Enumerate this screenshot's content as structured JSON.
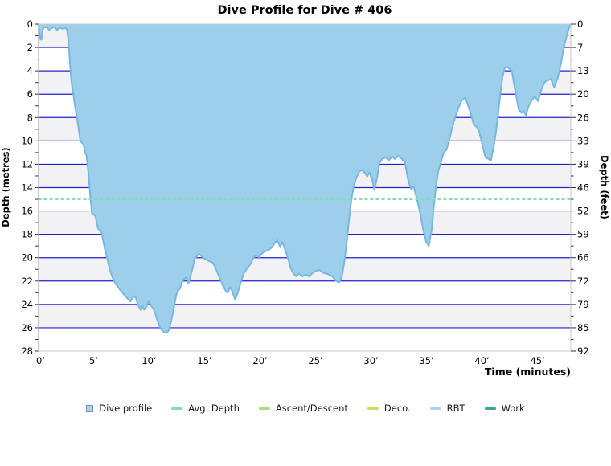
{
  "title": "Dive Profile for Dive # 406",
  "axes": {
    "left": {
      "label": "Depth (metres)",
      "ticks": [
        0,
        2,
        4,
        6,
        8,
        10,
        12,
        14,
        16,
        18,
        20,
        22,
        24,
        26,
        28
      ]
    },
    "right": {
      "label": "Depth (feet)",
      "ticks": [
        0,
        7,
        13,
        20,
        26,
        33,
        39,
        46,
        52,
        59,
        66,
        72,
        79,
        85,
        92
      ]
    },
    "bottom": {
      "label": "Time (minutes)",
      "tick_labels": [
        "0’",
        "5’",
        "10’",
        "15’",
        "20’",
        "25’",
        "30’",
        "35’",
        "40’",
        "45’"
      ],
      "tick_minutes": [
        0,
        5,
        10,
        15,
        20,
        25,
        30,
        35,
        40,
        45
      ]
    },
    "depth_max_m": 28,
    "time_max_min": 48
  },
  "colors": {
    "area_fill": "#9ccfe9",
    "area_stroke": "#7ab6e0",
    "grid": "#2222cc",
    "band_gray": "#f2f2f4",
    "band_white": "#ffffff",
    "plot_border": "#c8c8c8",
    "tick": "#333333",
    "avg_depth_line": "#7fdfad"
  },
  "legend": {
    "items": [
      {
        "label": "Dive profile",
        "color": "#a9d4ec",
        "border": "#6d9cb8",
        "type": "square"
      },
      {
        "label": "Avg. Depth",
        "color": "#7fdfad",
        "type": "line"
      },
      {
        "label": "Ascent/Descent",
        "color": "#a2dd7e",
        "type": "line"
      },
      {
        "label": "Deco.",
        "color": "#d2d966",
        "type": "line"
      },
      {
        "label": "RBT",
        "color": "#a8d7ee",
        "type": "line"
      },
      {
        "label": "Work",
        "color": "#3aa88d",
        "type": "line"
      }
    ]
  },
  "chart_data": {
    "type": "area",
    "title": "Dive Profile for Dive # 406",
    "xlabel": "Time (minutes)",
    "ylabel_left": "Depth (metres)",
    "ylabel_right": "Depth (feet)",
    "x_range_minutes": [
      0,
      48
    ],
    "y_range_metres": [
      0,
      28
    ],
    "y_inverted": true,
    "grid": "horizontal-blue-every-2m",
    "legend_position": "bottom",
    "avg_depth_m": 15,
    "max_depth_m": 26.5,
    "series": [
      {
        "name": "Dive profile",
        "points": [
          [
            0,
            0
          ],
          [
            0.1,
            0.5
          ],
          [
            0.2,
            1.3
          ],
          [
            0.3,
            1.35
          ],
          [
            0.4,
            0.5
          ],
          [
            0.55,
            0.25
          ],
          [
            0.8,
            0.3
          ],
          [
            1.0,
            0.5
          ],
          [
            1.2,
            0.35
          ],
          [
            1.45,
            0.25
          ],
          [
            1.7,
            0.5
          ],
          [
            1.95,
            0.3
          ],
          [
            2.2,
            0.4
          ],
          [
            2.45,
            0.3
          ],
          [
            2.6,
            0.5
          ],
          [
            2.7,
            1.2
          ],
          [
            2.8,
            2.4
          ],
          [
            2.9,
            3.8
          ],
          [
            3.0,
            4.9
          ],
          [
            3.15,
            5.9
          ],
          [
            3.3,
            6.9
          ],
          [
            3.5,
            8.0
          ],
          [
            3.65,
            9.0
          ],
          [
            3.8,
            10.0
          ],
          [
            3.95,
            10.15
          ],
          [
            4.1,
            10.35
          ],
          [
            4.2,
            11.0
          ],
          [
            4.35,
            11.2
          ],
          [
            4.45,
            12.0
          ],
          [
            4.55,
            13.0
          ],
          [
            4.65,
            14.2
          ],
          [
            4.75,
            15.3
          ],
          [
            4.85,
            16.2
          ],
          [
            5.0,
            16.3
          ],
          [
            5.15,
            16.45
          ],
          [
            5.3,
            17.1
          ],
          [
            5.4,
            17.5
          ],
          [
            5.55,
            17.65
          ],
          [
            5.7,
            17.8
          ],
          [
            5.85,
            18.5
          ],
          [
            6.0,
            19.2
          ],
          [
            6.2,
            20.0
          ],
          [
            6.45,
            21.0
          ],
          [
            6.7,
            21.7
          ],
          [
            6.95,
            22.2
          ],
          [
            7.25,
            22.6
          ],
          [
            7.6,
            23.0
          ],
          [
            8.0,
            23.45
          ],
          [
            8.3,
            23.75
          ],
          [
            8.55,
            23.4
          ],
          [
            8.75,
            23.3
          ],
          [
            8.95,
            23.9
          ],
          [
            9.1,
            24.25
          ],
          [
            9.25,
            24.5
          ],
          [
            9.4,
            24.1
          ],
          [
            9.55,
            24.45
          ],
          [
            9.75,
            24.2
          ],
          [
            9.95,
            23.75
          ],
          [
            10.15,
            24.05
          ],
          [
            10.45,
            24.5
          ],
          [
            10.75,
            25.4
          ],
          [
            11.05,
            26.1
          ],
          [
            11.3,
            26.35
          ],
          [
            11.55,
            26.45
          ],
          [
            11.75,
            26.25
          ],
          [
            11.95,
            25.6
          ],
          [
            12.15,
            24.7
          ],
          [
            12.3,
            23.9
          ],
          [
            12.45,
            23.2
          ],
          [
            12.6,
            22.85
          ],
          [
            12.8,
            22.6
          ],
          [
            13.0,
            22.0
          ],
          [
            13.2,
            21.8
          ],
          [
            13.35,
            21.7
          ],
          [
            13.55,
            22.2
          ],
          [
            13.75,
            21.5
          ],
          [
            13.95,
            20.8
          ],
          [
            14.1,
            20.1
          ],
          [
            14.35,
            19.8
          ],
          [
            14.55,
            19.7
          ],
          [
            14.8,
            19.95
          ],
          [
            15.1,
            20.15
          ],
          [
            15.4,
            20.3
          ],
          [
            15.7,
            20.4
          ],
          [
            15.95,
            20.8
          ],
          [
            16.25,
            21.5
          ],
          [
            16.6,
            22.3
          ],
          [
            16.9,
            22.85
          ],
          [
            17.1,
            23.0
          ],
          [
            17.3,
            22.5
          ],
          [
            17.5,
            22.9
          ],
          [
            17.75,
            23.6
          ],
          [
            17.95,
            23.1
          ],
          [
            18.2,
            22.3
          ],
          [
            18.5,
            21.4
          ],
          [
            18.8,
            20.95
          ],
          [
            19.1,
            20.6
          ],
          [
            19.4,
            20.0
          ],
          [
            19.65,
            19.8
          ],
          [
            19.9,
            19.95
          ],
          [
            20.2,
            19.6
          ],
          [
            20.5,
            19.45
          ],
          [
            20.8,
            19.3
          ],
          [
            21.1,
            19.1
          ],
          [
            21.35,
            18.7
          ],
          [
            21.55,
            18.5
          ],
          [
            21.8,
            19.1
          ],
          [
            22.0,
            18.65
          ],
          [
            22.25,
            19.3
          ],
          [
            22.5,
            20.0
          ],
          [
            22.75,
            20.9
          ],
          [
            23.0,
            21.35
          ],
          [
            23.25,
            21.6
          ],
          [
            23.5,
            21.35
          ],
          [
            23.8,
            21.6
          ],
          [
            24.1,
            21.45
          ],
          [
            24.4,
            21.6
          ],
          [
            24.7,
            21.35
          ],
          [
            25.0,
            21.15
          ],
          [
            25.35,
            21.05
          ],
          [
            25.7,
            21.3
          ],
          [
            26.1,
            21.4
          ],
          [
            26.5,
            21.6
          ],
          [
            26.85,
            22.0
          ],
          [
            27.15,
            22.1
          ],
          [
            27.4,
            21.5
          ],
          [
            27.6,
            20.3
          ],
          [
            27.8,
            18.8
          ],
          [
            27.95,
            17.3
          ],
          [
            28.1,
            16.0
          ],
          [
            28.25,
            14.9
          ],
          [
            28.45,
            13.8
          ],
          [
            28.7,
            13.1
          ],
          [
            28.95,
            12.6
          ],
          [
            29.2,
            12.5
          ],
          [
            29.45,
            12.75
          ],
          [
            29.65,
            13.05
          ],
          [
            29.85,
            12.7
          ],
          [
            30.1,
            13.3
          ],
          [
            30.3,
            14.2
          ],
          [
            30.55,
            13.1
          ],
          [
            30.75,
            11.9
          ],
          [
            31.0,
            11.55
          ],
          [
            31.3,
            11.4
          ],
          [
            31.6,
            11.65
          ],
          [
            31.9,
            11.35
          ],
          [
            32.15,
            11.55
          ],
          [
            32.45,
            11.3
          ],
          [
            32.75,
            11.5
          ],
          [
            33.05,
            11.85
          ],
          [
            33.35,
            13.4
          ],
          [
            33.6,
            14.1
          ],
          [
            33.85,
            13.95
          ],
          [
            34.1,
            14.9
          ],
          [
            34.4,
            16.1
          ],
          [
            34.7,
            17.6
          ],
          [
            34.95,
            18.6
          ],
          [
            35.2,
            19.0
          ],
          [
            35.45,
            17.7
          ],
          [
            35.65,
            15.7
          ],
          [
            35.85,
            13.9
          ],
          [
            36.05,
            12.6
          ],
          [
            36.3,
            11.8
          ],
          [
            36.55,
            11.0
          ],
          [
            36.8,
            10.75
          ],
          [
            37.05,
            9.9
          ],
          [
            37.3,
            8.9
          ],
          [
            37.6,
            7.9
          ],
          [
            37.9,
            7.1
          ],
          [
            38.2,
            6.5
          ],
          [
            38.5,
            6.3
          ],
          [
            38.75,
            7.0
          ],
          [
            39.0,
            7.7
          ],
          [
            39.25,
            8.6
          ],
          [
            39.55,
            8.85
          ],
          [
            39.75,
            9.2
          ],
          [
            40.05,
            10.4
          ],
          [
            40.3,
            11.4
          ],
          [
            40.6,
            11.55
          ],
          [
            40.8,
            11.7
          ],
          [
            41.05,
            10.5
          ],
          [
            41.25,
            9.3
          ],
          [
            41.45,
            7.7
          ],
          [
            41.65,
            5.9
          ],
          [
            41.85,
            4.5
          ],
          [
            42.05,
            3.75
          ],
          [
            42.25,
            3.65
          ],
          [
            42.5,
            3.85
          ],
          [
            42.7,
            4.05
          ],
          [
            42.9,
            5.2
          ],
          [
            43.1,
            6.3
          ],
          [
            43.3,
            7.3
          ],
          [
            43.55,
            7.6
          ],
          [
            43.75,
            7.45
          ],
          [
            43.95,
            7.8
          ],
          [
            44.2,
            7.0
          ],
          [
            44.5,
            6.5
          ],
          [
            44.75,
            6.2
          ],
          [
            45.05,
            6.6
          ],
          [
            45.35,
            5.6
          ],
          [
            45.65,
            4.95
          ],
          [
            45.95,
            4.8
          ],
          [
            46.2,
            4.7
          ],
          [
            46.5,
            5.4
          ],
          [
            46.8,
            4.7
          ],
          [
            47.0,
            3.9
          ],
          [
            47.2,
            2.9
          ],
          [
            47.4,
            1.9
          ],
          [
            47.55,
            1.3
          ],
          [
            47.7,
            0.75
          ],
          [
            47.85,
            0.3
          ],
          [
            48,
            0
          ]
        ]
      }
    ]
  }
}
